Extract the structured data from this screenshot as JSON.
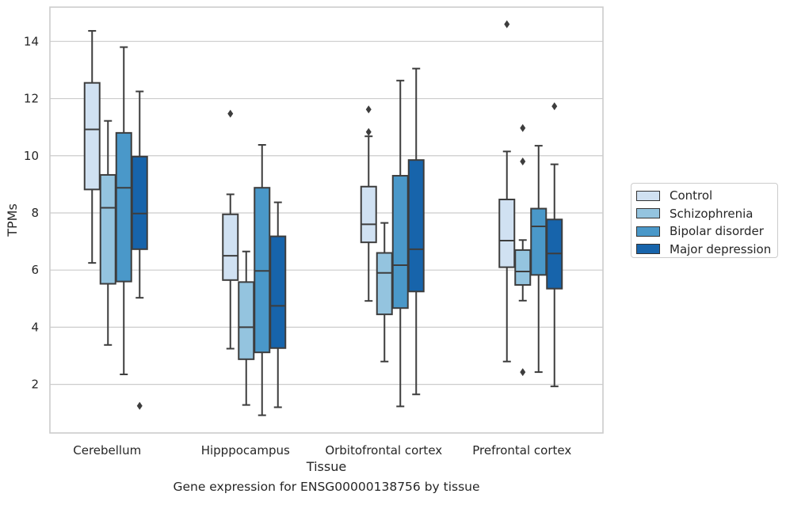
{
  "caption": "Gene expression for ENSG00000138756 by tissue",
  "legend_title": "",
  "chart_data": {
    "type": "box",
    "xlabel": "Tissue",
    "ylabel": "TPMs",
    "ylim": [
      0.3,
      15.2
    ],
    "yticks": [
      2,
      4,
      6,
      8,
      10,
      12,
      14
    ],
    "grid": true,
    "legend": "right",
    "categories": [
      "Cerebellum",
      "Hipppocampus",
      "Orbitofrontal cortex",
      "Prefrontal cortex"
    ],
    "series": [
      {
        "name": "Control",
        "color": "#d0e1f2",
        "boxes": [
          {
            "whislo": 6.25,
            "q1": 8.82,
            "med": 10.92,
            "q3": 12.55,
            "whishi": 14.37,
            "fliers": []
          },
          {
            "whislo": 3.25,
            "q1": 5.65,
            "med": 6.5,
            "q3": 7.95,
            "whishi": 8.65,
            "fliers": [
              11.47
            ]
          },
          {
            "whislo": 4.92,
            "q1": 6.97,
            "med": 7.6,
            "q3": 8.92,
            "whishi": 10.68,
            "fliers": [
              10.83,
              11.62
            ]
          },
          {
            "whislo": 2.8,
            "q1": 6.1,
            "med": 7.03,
            "q3": 8.47,
            "whishi": 10.15,
            "fliers": [
              14.6
            ]
          }
        ]
      },
      {
        "name": "Schizophrenia",
        "color": "#94c4df",
        "boxes": [
          {
            "whislo": 3.38,
            "q1": 5.52,
            "med": 8.18,
            "q3": 9.33,
            "whishi": 11.22,
            "fliers": []
          },
          {
            "whislo": 1.28,
            "q1": 2.88,
            "med": 4.0,
            "q3": 5.58,
            "whishi": 6.65,
            "fliers": []
          },
          {
            "whislo": 2.8,
            "q1": 4.45,
            "med": 5.9,
            "q3": 6.6,
            "whishi": 7.65,
            "fliers": []
          },
          {
            "whislo": 4.93,
            "q1": 5.48,
            "med": 5.95,
            "q3": 6.7,
            "whishi": 7.05,
            "fliers": [
              2.43,
              9.8,
              10.97
            ]
          }
        ]
      },
      {
        "name": "Bipolar disorder",
        "color": "#4a98c9",
        "boxes": [
          {
            "whislo": 2.35,
            "q1": 5.6,
            "med": 8.88,
            "q3": 10.8,
            "whishi": 13.8,
            "fliers": []
          },
          {
            "whislo": 0.92,
            "q1": 3.12,
            "med": 5.97,
            "q3": 8.88,
            "whishi": 10.38,
            "fliers": []
          },
          {
            "whislo": 1.23,
            "q1": 4.67,
            "med": 6.17,
            "q3": 9.3,
            "whishi": 12.63,
            "fliers": []
          },
          {
            "whislo": 2.43,
            "q1": 5.83,
            "med": 7.53,
            "q3": 8.15,
            "whishi": 10.35,
            "fliers": []
          }
        ]
      },
      {
        "name": "Major depression",
        "color": "#1764ab",
        "boxes": [
          {
            "whislo": 5.03,
            "q1": 6.73,
            "med": 7.98,
            "q3": 9.97,
            "whishi": 12.25,
            "fliers": [
              1.25
            ]
          },
          {
            "whislo": 1.2,
            "q1": 3.27,
            "med": 4.75,
            "q3": 7.18,
            "whishi": 8.37,
            "fliers": []
          },
          {
            "whislo": 1.65,
            "q1": 5.25,
            "med": 6.73,
            "q3": 9.85,
            "whishi": 13.05,
            "fliers": []
          },
          {
            "whislo": 1.93,
            "q1": 5.35,
            "med": 6.58,
            "q3": 7.77,
            "whishi": 9.7,
            "fliers": [
              11.73
            ]
          }
        ]
      }
    ]
  }
}
